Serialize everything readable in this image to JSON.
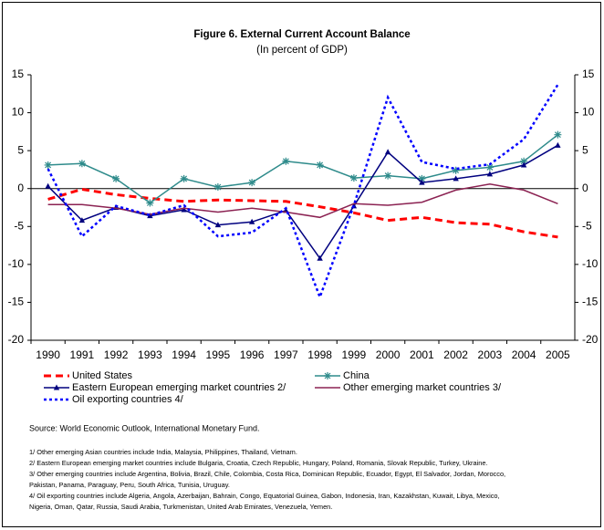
{
  "chart_data": {
    "type": "line",
    "title": "Figure 6. External Current Account Balance",
    "subtitle": "(In percent of GDP)",
    "categories": [
      "1990",
      "1991",
      "1992",
      "1993",
      "1994",
      "1995",
      "1996",
      "1997",
      "1998",
      "1999",
      "2000",
      "2001",
      "2002",
      "2003",
      "2004",
      "2005"
    ],
    "series": [
      {
        "name": "United States",
        "color": "#ff0000",
        "style": "dashed",
        "values": [
          -1.4,
          -0.1,
          -0.8,
          -1.3,
          -1.7,
          -1.5,
          -1.6,
          -1.7,
          -2.4,
          -3.2,
          -4.2,
          -3.8,
          -4.5,
          -4.7,
          -5.7,
          -6.4
        ]
      },
      {
        "name": "China",
        "color": "#2e8b8b",
        "style": "solid",
        "marker": "star",
        "values": [
          3.1,
          3.3,
          1.3,
          -1.9,
          1.3,
          0.2,
          0.8,
          3.6,
          3.1,
          1.4,
          1.7,
          1.3,
          2.4,
          2.8,
          3.6,
          7.1
        ]
      },
      {
        "name": "Eastern European emerging market countries 2/",
        "color": "#00007f",
        "style": "solid",
        "marker": "triangle",
        "values": [
          0.3,
          -4.2,
          -2.5,
          -3.6,
          -2.8,
          -4.8,
          -4.4,
          -2.9,
          -9.2,
          -2.3,
          4.8,
          0.8,
          1.3,
          1.9,
          3.1,
          5.7
        ]
      },
      {
        "name": "Other emerging market countries 3/",
        "color": "#8b2252",
        "style": "solid",
        "values": [
          -2.1,
          -2.1,
          -2.6,
          -3.4,
          -2.6,
          -3.1,
          -2.6,
          -3.1,
          -3.8,
          -2.0,
          -2.2,
          -1.8,
          -0.2,
          0.6,
          -0.2,
          -2.0
        ]
      },
      {
        "name": "Oil exporting countries 4/",
        "color": "#0000ff",
        "style": "dotted",
        "values": [
          2.6,
          -6.3,
          -2.3,
          -3.5,
          -2.2,
          -6.3,
          -5.8,
          -2.6,
          -14.3,
          -2.2,
          12.0,
          3.5,
          2.6,
          3.2,
          6.5,
          13.7
        ]
      }
    ],
    "ylim": [
      -20,
      15
    ],
    "yticks": [
      -20,
      -15,
      -10,
      -5,
      0,
      5,
      10,
      15
    ],
    "y2lim": [
      -20,
      15
    ],
    "y2ticks": [
      -20,
      -15,
      -10,
      -5,
      0,
      5,
      10,
      15
    ],
    "grid": false,
    "source": "Source: World Economic Outlook, International Monetary Fund.",
    "notes": [
      "1/ Other emerging Asian countries include India, Malaysia, Philippines, Thailand, Vietnam.",
      "2/ Eastern European emerging market countries include Bulgaria, Croatia, Czech Republic, Hungary, Poland, Romania, Slovak Republic, Turkey, Ukraine.",
      "3/ Other emerging countries include Argentina, Bolivia, Brazil, Chile, Colombia, Costa Rica, Dominican Republic, Ecuador, Egypt, El Salvador, Jordan, Morocco,",
      "Pakistan, Panama, Paraguay, Peru, South Africa, Tunisia, Uruguay.",
      "4/ Oil exporting countries include Algeria, Angola, Azerbaijan, Bahrain, Congo, Equatorial Guinea, Gabon, Indonesia, Iran, Kazakhstan, Kuwait, Libya, Mexico,",
      "Nigeria, Oman, Qatar, Russia, Saudi Arabia, Turkmenistan, United Arab Emirates, Venezuela, Yemen."
    ]
  }
}
